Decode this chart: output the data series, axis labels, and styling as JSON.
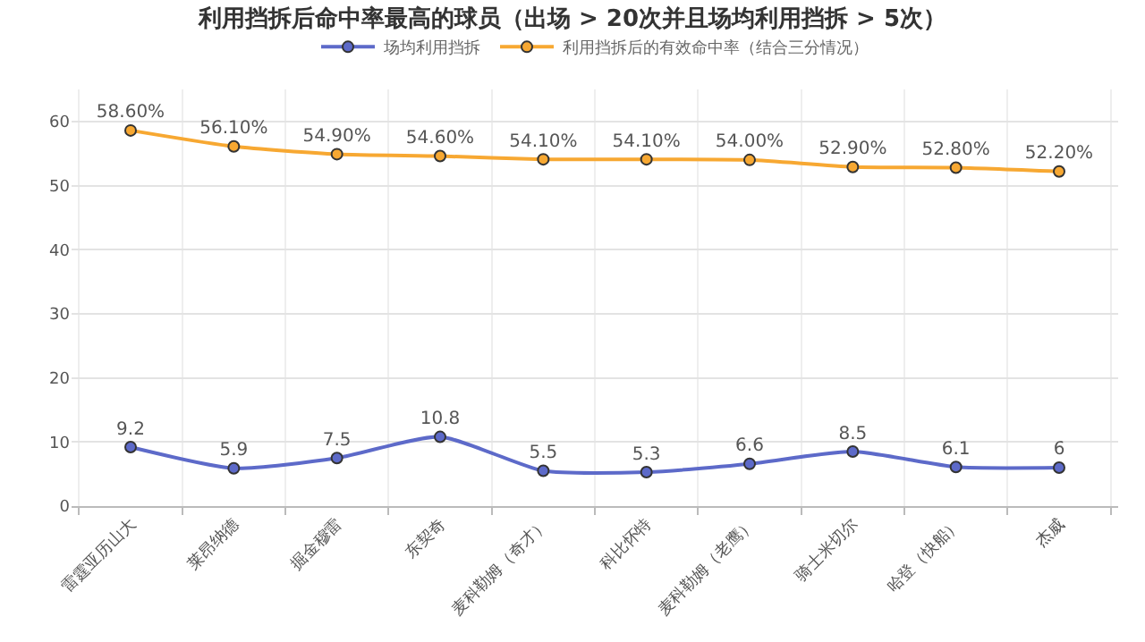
{
  "chart_data": {
    "type": "line",
    "title": "利用挡拆后命中率最高的球员（出场 > 20次并且场均利用挡拆 > 5次）",
    "categories": [
      "雷霆亚历山大",
      "莱昂纳德",
      "掘金穆雷",
      "东契奇",
      "麦科勒姆（奇才）",
      "科比怀特",
      "麦科勒姆（老鹰）",
      "骑士米切尔",
      "哈登（快船）",
      "杰威"
    ],
    "series": [
      {
        "name": "场均利用挡拆",
        "color": "#5d6ac9",
        "values": [
          9.2,
          5.9,
          7.5,
          10.8,
          5.5,
          5.3,
          6.6,
          8.5,
          6.1,
          6
        ],
        "value_labels": [
          "9.2",
          "5.9",
          "7.5",
          "10.8",
          "5.5",
          "5.3",
          "6.6",
          "8.5",
          "6.1",
          "6"
        ]
      },
      {
        "name": "利用挡拆后的有效命中率（结合三分情况）",
        "color": "#f7a832",
        "values": [
          58.6,
          56.1,
          54.9,
          54.6,
          54.1,
          54.1,
          54.0,
          52.9,
          52.8,
          52.2
        ],
        "value_labels": [
          "58.60%",
          "56.10%",
          "54.90%",
          "54.60%",
          "54.10%",
          "54.10%",
          "54.00%",
          "52.90%",
          "52.80%",
          "52.20%"
        ]
      }
    ],
    "ylim": [
      0,
      65
    ],
    "yticks": [
      0,
      10,
      20,
      30,
      40,
      50,
      60
    ],
    "grid": true,
    "legend": "top",
    "marker": "circle",
    "line_style": "solid"
  }
}
